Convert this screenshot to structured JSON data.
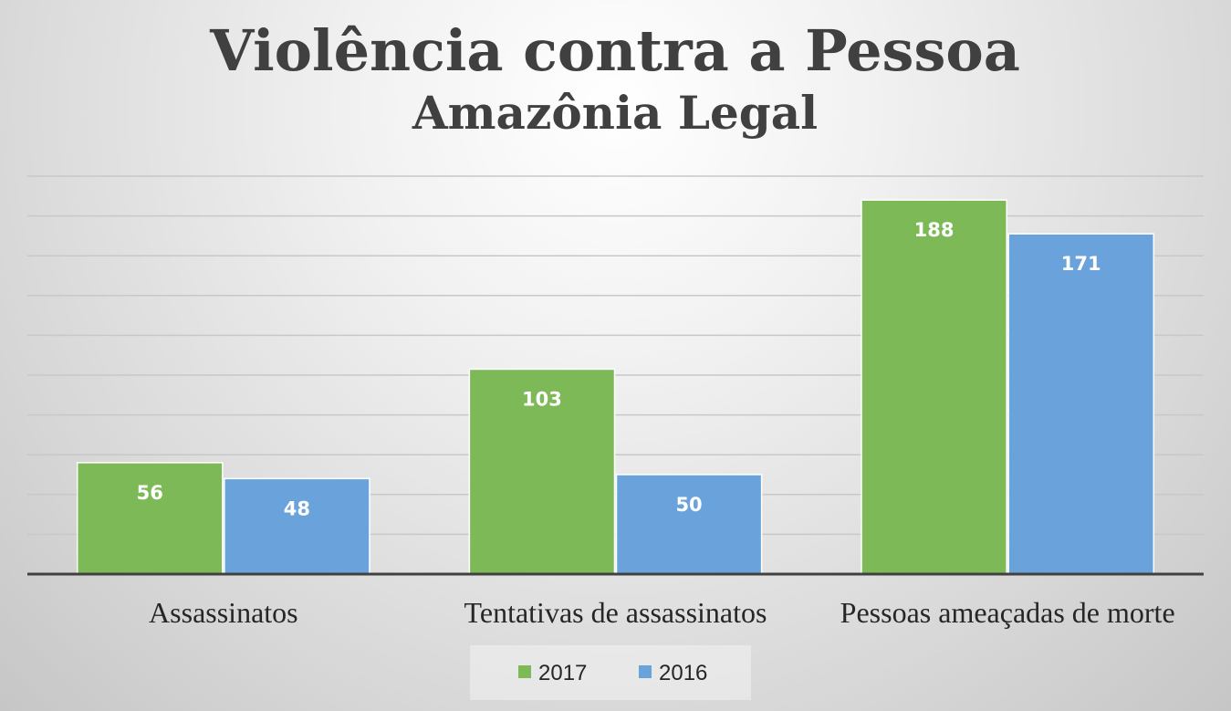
{
  "chart_data": {
    "type": "bar",
    "title": "Violência contra a Pessoa",
    "subtitle": "Amazônia Legal",
    "categories": [
      "Assassinatos",
      "Tentativas de assassinatos",
      "Pessoas ameaçadas de morte"
    ],
    "series": [
      {
        "name": "2017",
        "color": "#7dba57",
        "values": [
          56,
          103,
          188
        ]
      },
      {
        "name": "2016",
        "color": "#6aa3dc",
        "values": [
          48,
          50,
          171
        ]
      }
    ],
    "ylim": [
      0,
      200
    ],
    "grid": true,
    "legend": "bottom"
  }
}
